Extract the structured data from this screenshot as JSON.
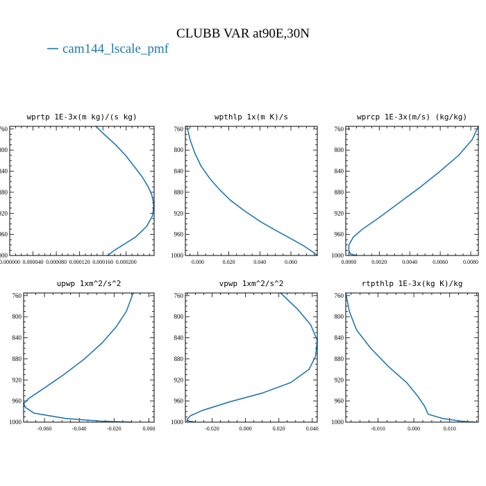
{
  "figure": {
    "title": "CLUBB VAR at90E,30N",
    "legend": [
      {
        "label": "cam144_lscale_pmf",
        "color": "#1f77b4"
      }
    ]
  },
  "chart_data": [
    {
      "type": "line",
      "title": "wprtp  1E-3x(m kg)/(s kg)",
      "xlim": [
        0.0,
        0.000248
      ],
      "ylim": [
        1000,
        755
      ],
      "yticks": [
        760,
        800,
        840,
        880,
        920,
        960,
        1000
      ],
      "xticks": [
        0.0,
        4e-05,
        8e-05,
        0.00012,
        0.00016,
        0.0002
      ],
      "xtick_labels": [
        "0.000000",
        "0.000040",
        "0.000080",
        "0.000120",
        "0.000160",
        "0.000200"
      ],
      "series": [
        {
          "color": "#1f77b4",
          "x": [
            0.000148,
            0.000162,
            0.000182,
            0.000199,
            0.000213,
            0.000227,
            0.000238,
            0.000244,
            0.000247,
            0.000247,
            0.000245,
            0.000235,
            0.000216,
            0.00018,
            0.000168
          ],
          "y": [
            755,
            770,
            790,
            810,
            830,
            850,
            870,
            885,
            900,
            910,
            925,
            945,
            965,
            990,
            1000
          ]
        }
      ]
    },
    {
      "type": "line",
      "title": "wpthlp  1x(m K)/s",
      "xlim": [
        -0.008,
        0.077
      ],
      "ylim": [
        1000,
        755
      ],
      "yticks": [
        760,
        800,
        840,
        880,
        920,
        960,
        1000
      ],
      "xticks": [
        0.0,
        0.02,
        0.04,
        0.06
      ],
      "xtick_labels": [
        "0.000",
        "0.020",
        "0.040",
        "0.060"
      ],
      "series": [
        {
          "color": "#1f77b4",
          "x": [
            -0.007,
            -0.005,
            -0.002,
            0.002,
            0.008,
            0.014,
            0.021,
            0.03,
            0.04,
            0.05,
            0.06,
            0.069,
            0.075,
            0.077
          ],
          "y": [
            755,
            780,
            805,
            830,
            855,
            875,
            895,
            915,
            935,
            952,
            968,
            983,
            995,
            1000
          ]
        }
      ]
    },
    {
      "type": "line",
      "title": "wprcp  1E-3x(m/s) (kg/kg)",
      "xlim": [
        -0.0002,
        0.0085
      ],
      "ylim": [
        1000,
        755
      ],
      "yticks": [
        760,
        800,
        840,
        880,
        920,
        960,
        1000
      ],
      "xticks": [
        0.0,
        0.002,
        0.004,
        0.006,
        0.008
      ],
      "xtick_labels": [
        "0.0000",
        "0.0020",
        "0.0040",
        "0.0060",
        "0.0080"
      ],
      "series": [
        {
          "color": "#1f77b4",
          "x": [
            0.0085,
            0.0081,
            0.0072,
            0.006,
            0.0047,
            0.0033,
            0.0019,
            0.0009,
            0.0003,
            0.0,
            0.0,
            0.0001,
            0.0005
          ],
          "y": [
            755,
            780,
            810,
            840,
            870,
            900,
            930,
            950,
            965,
            980,
            990,
            997,
            1000
          ]
        }
      ]
    },
    {
      "type": "line",
      "title": "upwp  1xm^2/s^2",
      "xlim": [
        -0.072,
        0.003
      ],
      "ylim": [
        1000,
        755
      ],
      "yticks": [
        760,
        800,
        840,
        880,
        920,
        960,
        1000
      ],
      "xticks": [
        -0.06,
        -0.04,
        -0.02,
        0.0
      ],
      "xtick_labels": [
        "-0.060",
        "-0.040",
        "-0.020",
        "0.000"
      ],
      "series": [
        {
          "color": "#1f77b4",
          "x": [
            -0.009,
            -0.013,
            -0.019,
            -0.027,
            -0.037,
            -0.049,
            -0.06,
            -0.069,
            -0.072,
            -0.071,
            -0.066,
            -0.048,
            -0.028,
            -0.01
          ],
          "y": [
            755,
            790,
            820,
            850,
            880,
            910,
            935,
            955,
            965,
            972,
            983,
            993,
            998,
            1000
          ]
        }
      ]
    },
    {
      "type": "line",
      "title": "vpwp  1xm^2/s^2",
      "xlim": [
        -0.036,
        0.043
      ],
      "ylim": [
        1000,
        755
      ],
      "yticks": [
        760,
        800,
        840,
        880,
        920,
        960,
        1000
      ],
      "xticks": [
        -0.02,
        0.0,
        0.02,
        0.04
      ],
      "xtick_labels": [
        "-0.020",
        "0.000",
        "0.020",
        "0.040"
      ],
      "series": [
        {
          "color": "#1f77b4",
          "x": [
            0.021,
            0.031,
            0.039,
            0.043,
            0.042,
            0.038,
            0.027,
            0.01,
            -0.01,
            -0.026,
            -0.033,
            -0.035,
            -0.034,
            -0.03
          ],
          "y": [
            755,
            785,
            815,
            845,
            875,
            900,
            925,
            945,
            962,
            978,
            988,
            995,
            998,
            1000
          ]
        }
      ]
    },
    {
      "type": "line",
      "title": "rtpthlp  1E-3x(kg K)/kg",
      "xlim": [
        -0.019,
        0.018
      ],
      "ylim": [
        1000,
        755
      ],
      "yticks": [
        760,
        800,
        840,
        880,
        920,
        960,
        1000
      ],
      "xticks": [
        -0.01,
        0.0,
        0.01
      ],
      "xtick_labels": [
        "-0.010",
        "0.000",
        "0.010"
      ],
      "series": [
        {
          "color": "#1f77b4",
          "x": [
            -0.019,
            -0.018,
            -0.016,
            -0.012,
            -0.007,
            -0.002,
            0.001,
            0.003,
            0.004,
            0.008,
            0.013,
            0.017
          ],
          "y": [
            755,
            790,
            825,
            860,
            895,
            925,
            950,
            970,
            985,
            993,
            998,
            1000
          ]
        }
      ]
    }
  ]
}
